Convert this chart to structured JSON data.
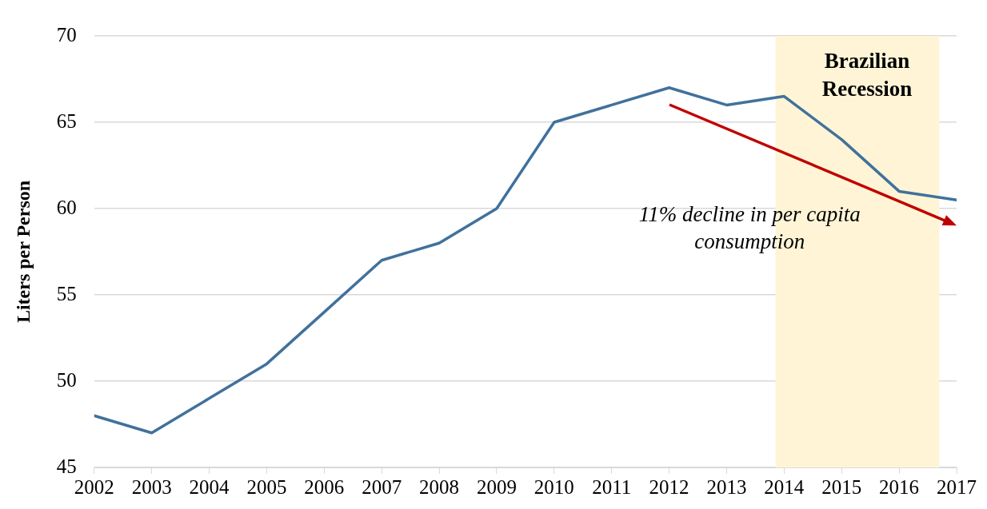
{
  "chart_data": {
    "type": "line",
    "ylabel": "Liters per Person",
    "x": [
      2002,
      2003,
      2004,
      2005,
      2006,
      2007,
      2008,
      2009,
      2010,
      2011,
      2012,
      2013,
      2014,
      2015,
      2016,
      2017
    ],
    "series": [
      {
        "color": "#41719c",
        "values": [
          48,
          47,
          49,
          51,
          54,
          57,
          58,
          60,
          65,
          66,
          67,
          66,
          66.5,
          64,
          61,
          60.5
        ]
      }
    ],
    "xlim": [
      2002,
      2017
    ],
    "xticks": [
      2002,
      2003,
      2004,
      2005,
      2006,
      2007,
      2008,
      2009,
      2010,
      2011,
      2012,
      2013,
      2014,
      2015,
      2016,
      2017
    ],
    "ylim": [
      45,
      70
    ],
    "yticks": [
      45,
      50,
      55,
      60,
      65,
      70
    ],
    "bands": [
      {
        "axis": "x",
        "from": 2013.85,
        "to": 2016.7,
        "label": "Brazilian Recession",
        "color": "#fff5d6"
      }
    ],
    "annotations": [
      "11% decline in per capita consumption"
    ],
    "grid": "y",
    "legend": false,
    "marker": "none",
    "line_style": "solid"
  }
}
